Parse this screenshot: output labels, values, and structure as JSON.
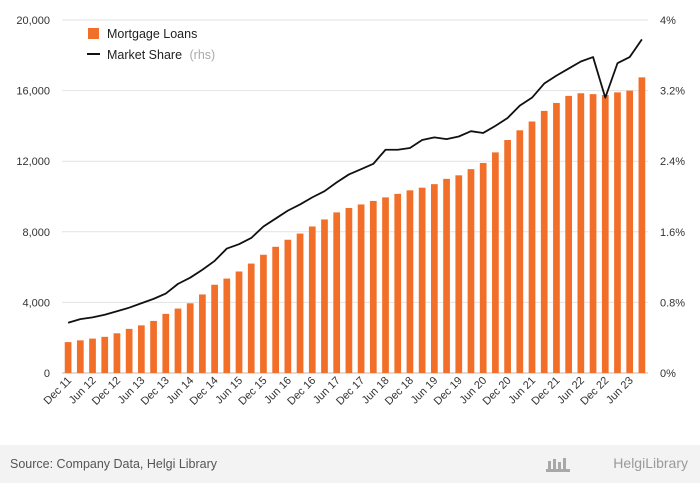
{
  "chart_data": {
    "type": "bar",
    "categories": [
      "Dec 11",
      "Mar 12",
      "Jun 12",
      "Sep 12",
      "Dec 12",
      "Mar 13",
      "Jun 13",
      "Sep 13",
      "Dec 13",
      "Mar 14",
      "Jun 14",
      "Sep 14",
      "Dec 14",
      "Mar 15",
      "Jun 15",
      "Sep 15",
      "Dec 15",
      "Mar 16",
      "Jun 16",
      "Sep 16",
      "Dec 16",
      "Mar 17",
      "Jun 17",
      "Sep 17",
      "Dec 17",
      "Mar 18",
      "Jun 18",
      "Sep 18",
      "Dec 18",
      "Mar 19",
      "Jun 19",
      "Sep 19",
      "Dec 19",
      "Mar 20",
      "Jun 20",
      "Sep 20",
      "Dec 20",
      "Mar 21",
      "Jun 21",
      "Sep 21",
      "Dec 21",
      "Mar 22",
      "Jun 22",
      "Sep 22",
      "Dec 22",
      "Mar 23",
      "Jun 23",
      "Sep 23"
    ],
    "xtick_labels": [
      "Dec 11",
      "Jun 12",
      "Dec 12",
      "Jun 13",
      "Dec 13",
      "Jun 14",
      "Dec 14",
      "Jun 15",
      "Dec 15",
      "Jun 16",
      "Dec 16",
      "Jun 17",
      "Dec 17",
      "Jun 18",
      "Dec 18",
      "Jun 19",
      "Dec 19",
      "Jun 20",
      "Dec 20",
      "Jun 21",
      "Dec 21",
      "Jun 22",
      "Dec 22",
      "Jun 23"
    ],
    "series": [
      {
        "name": "Mortgage Loans",
        "type": "bar",
        "axis": "left",
        "color": "#f26f2a",
        "values": [
          1750,
          1850,
          1950,
          2050,
          2250,
          2500,
          2700,
          2950,
          3350,
          3650,
          3950,
          4450,
          5000,
          5350,
          5750,
          6200,
          6700,
          7150,
          7550,
          7900,
          8300,
          8700,
          9100,
          9350,
          9550,
          9750,
          9950,
          10150,
          10350,
          10500,
          10700,
          11000,
          11200,
          11550,
          11900,
          12500,
          13200,
          13750,
          14250,
          14850,
          15300,
          15700,
          15850,
          15800,
          15750,
          15900,
          16000,
          16750
        ]
      },
      {
        "name": "Market Share",
        "name_suffix": "(rhs)",
        "type": "line",
        "axis": "right",
        "color": "#111111",
        "values": [
          0.57,
          0.61,
          0.63,
          0.66,
          0.7,
          0.74,
          0.79,
          0.84,
          0.9,
          1.01,
          1.08,
          1.17,
          1.27,
          1.41,
          1.46,
          1.53,
          1.66,
          1.75,
          1.84,
          1.91,
          1.99,
          2.06,
          2.16,
          2.25,
          2.31,
          2.37,
          2.53,
          2.53,
          2.55,
          2.64,
          2.67,
          2.65,
          2.68,
          2.74,
          2.72,
          2.8,
          2.89,
          3.03,
          3.12,
          3.28,
          3.37,
          3.45,
          3.53,
          3.58,
          3.12,
          3.51,
          3.58,
          3.78
        ]
      }
    ],
    "yaxis_left": {
      "ylim": [
        0,
        20000
      ],
      "ticks": [
        "0",
        "4,000",
        "8,000",
        "12,000",
        "16,000",
        "20,000"
      ],
      "tick_values": [
        0,
        4000,
        8000,
        12000,
        16000,
        20000
      ]
    },
    "yaxis_right": {
      "ylim": [
        0,
        4
      ],
      "ticks": [
        "0%",
        "0.8%",
        "1.6%",
        "2.4%",
        "3.2%",
        "4%"
      ],
      "tick_values": [
        0,
        0.8,
        1.6,
        2.4,
        3.2,
        4
      ]
    },
    "grid": true,
    "legend_position": "top-left",
    "title": "",
    "xlabel": "",
    "ylabel": ""
  },
  "footer": {
    "source": "Source: Company Data, Helgi Library",
    "brand": "HelgiLibrary"
  }
}
